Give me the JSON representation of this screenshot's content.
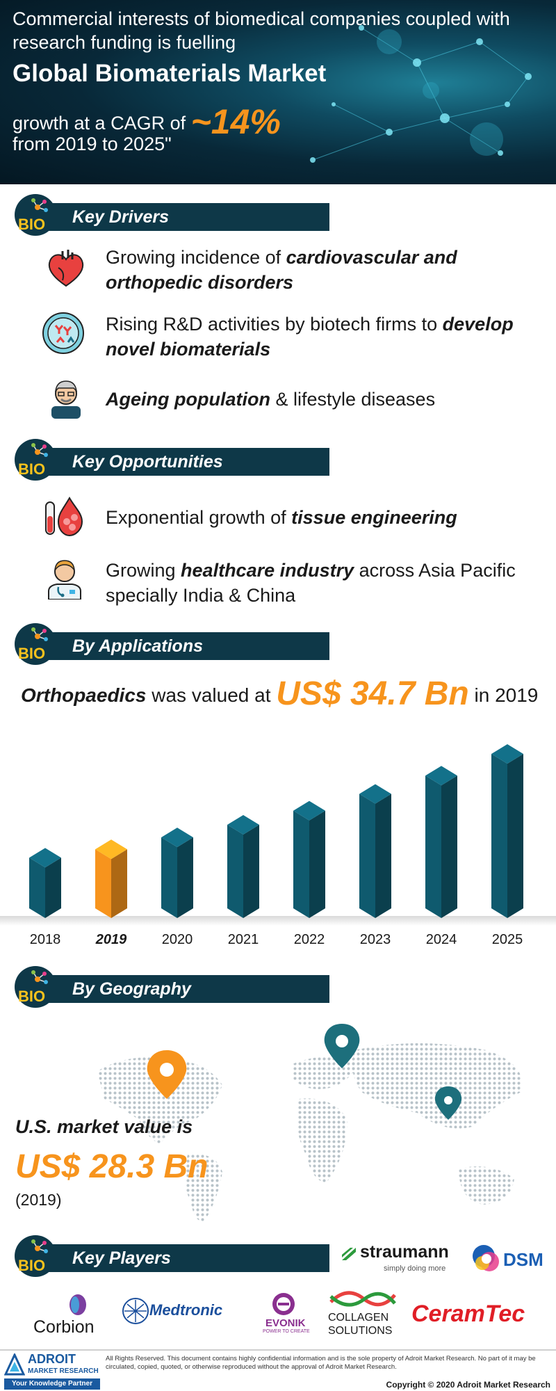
{
  "header": {
    "line1": "Commercial interests of biomedical companies coupled with research funding is fuelling",
    "title": "Global Biomaterials Market",
    "growth_prefix": "growth at a CAGR of ",
    "cagr": "~14%",
    "period": "from 2019 to 2025\""
  },
  "sections": {
    "drivers": "Key Drivers",
    "opportunities": "Key Opportunities",
    "applications": "By Applications",
    "geography": "By Geography",
    "players": "Key Players",
    "bio_logo": "BIO"
  },
  "drivers": [
    {
      "pre": "Growing incidence of ",
      "bold": "cardiovascular and orthopedic disorders",
      "post": "",
      "icon": "heart-icon"
    },
    {
      "pre": "Rising R&D activities by biotech firms to ",
      "bold": "develop novel biomaterials",
      "post": "",
      "icon": "antibody-icon"
    },
    {
      "pre": "",
      "bold": "Ageing population",
      "post": " & lifestyle diseases",
      "icon": "elderly-man-icon"
    }
  ],
  "opportunities": [
    {
      "pre": "Exponential  growth of ",
      "bold": "tissue  engineering",
      "post": "",
      "icon": "blood-cells-icon"
    },
    {
      "pre": "Growing ",
      "bold": "healthcare industry",
      "post": " across Asia Pacific specially India & China",
      "icon": "doctor-icon"
    }
  ],
  "applications": {
    "segment": "Orthopaedics",
    "mid": " was valued at ",
    "value": "US$ 34.7 Bn",
    "year_text": " in 2019"
  },
  "chart_data": {
    "type": "bar",
    "categories": [
      "2018",
      "2019",
      "2020",
      "2021",
      "2022",
      "2023",
      "2024",
      "2025"
    ],
    "values": [
      1.0,
      1.12,
      1.29,
      1.47,
      1.67,
      1.91,
      2.17,
      2.48
    ],
    "highlight_category": "2019",
    "colors": {
      "bar": "#0f5a6e",
      "highlight": "#f7941d"
    },
    "title": "",
    "xlabel": "",
    "ylabel": ""
  },
  "geography": {
    "label": "U.S. market value is",
    "value": "US$ 28.3 Bn",
    "year": "(2019)"
  },
  "players": {
    "straumann": "straumann",
    "straumann_tag": "simply doing more",
    "dsm": "DSM",
    "corbion": "Corbion",
    "medtronic": "Medtronic",
    "evonik": "EVONIK",
    "evonik_tag": "POWER TO CREATE",
    "collagen1": "COLLAGEN",
    "collagen2": "SOLUTIONS",
    "ceramtec": "CeramTec"
  },
  "footer": {
    "brand1": "ADROIT",
    "brand2": "MARKET RESEARCH",
    "tagline": "Your Knowledge Partner",
    "rights": "All Rights Reserved. This document contains highly confidential information and is the sole property of Adroit Market Research. No part of it may be circulated, copied, quoted, or otherwise reproduced without the approval of Adroit Market Research.",
    "copyright": "Copyright © 2020 Adroit Market Research"
  }
}
